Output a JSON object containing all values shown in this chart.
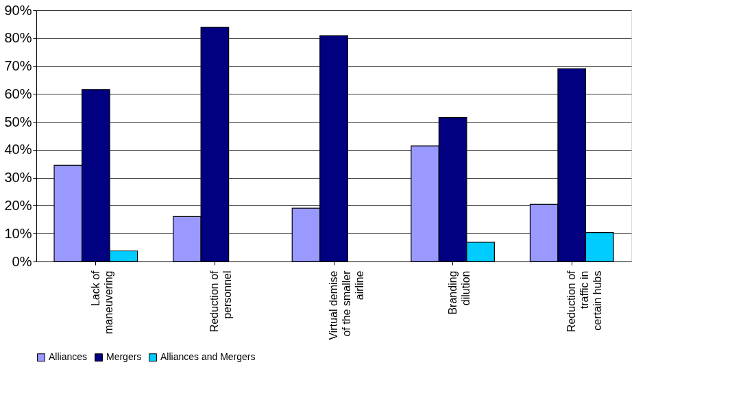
{
  "chart_data": {
    "type": "bar",
    "categories": [
      "Lack of maneuvering",
      "Reduction of personnel",
      "Virtual demise of the smaller airline",
      "Branding dilution",
      "Reduction of traffic in certain hubs"
    ],
    "series": [
      {
        "name": "Alliances",
        "color": "#9999ff",
        "values": [
          34.5,
          16.1,
          19.1,
          41.4,
          20.5
        ]
      },
      {
        "name": "Mergers",
        "color": "#000080",
        "values": [
          61.6,
          83.9,
          80.9,
          51.6,
          69.1
        ]
      },
      {
        "name": "Alliances and Mergers",
        "color": "#00ccff",
        "values": [
          3.8,
          null,
          null,
          6.9,
          10.4
        ]
      }
    ],
    "ylim": [
      0,
      90
    ],
    "yticks": [
      {
        "value": 0,
        "label": "0%"
      },
      {
        "value": 10,
        "label": "10%"
      },
      {
        "value": 20,
        "label": "20%"
      },
      {
        "value": 30,
        "label": "30%"
      },
      {
        "value": 40,
        "label": "40%"
      },
      {
        "value": 50,
        "label": "50%"
      },
      {
        "value": 60,
        "label": "60%"
      },
      {
        "value": 70,
        "label": "70%"
      },
      {
        "value": 80,
        "label": "80%"
      },
      {
        "value": 90,
        "label": "90%"
      }
    ],
    "grid": "y",
    "legend": "bottom"
  }
}
